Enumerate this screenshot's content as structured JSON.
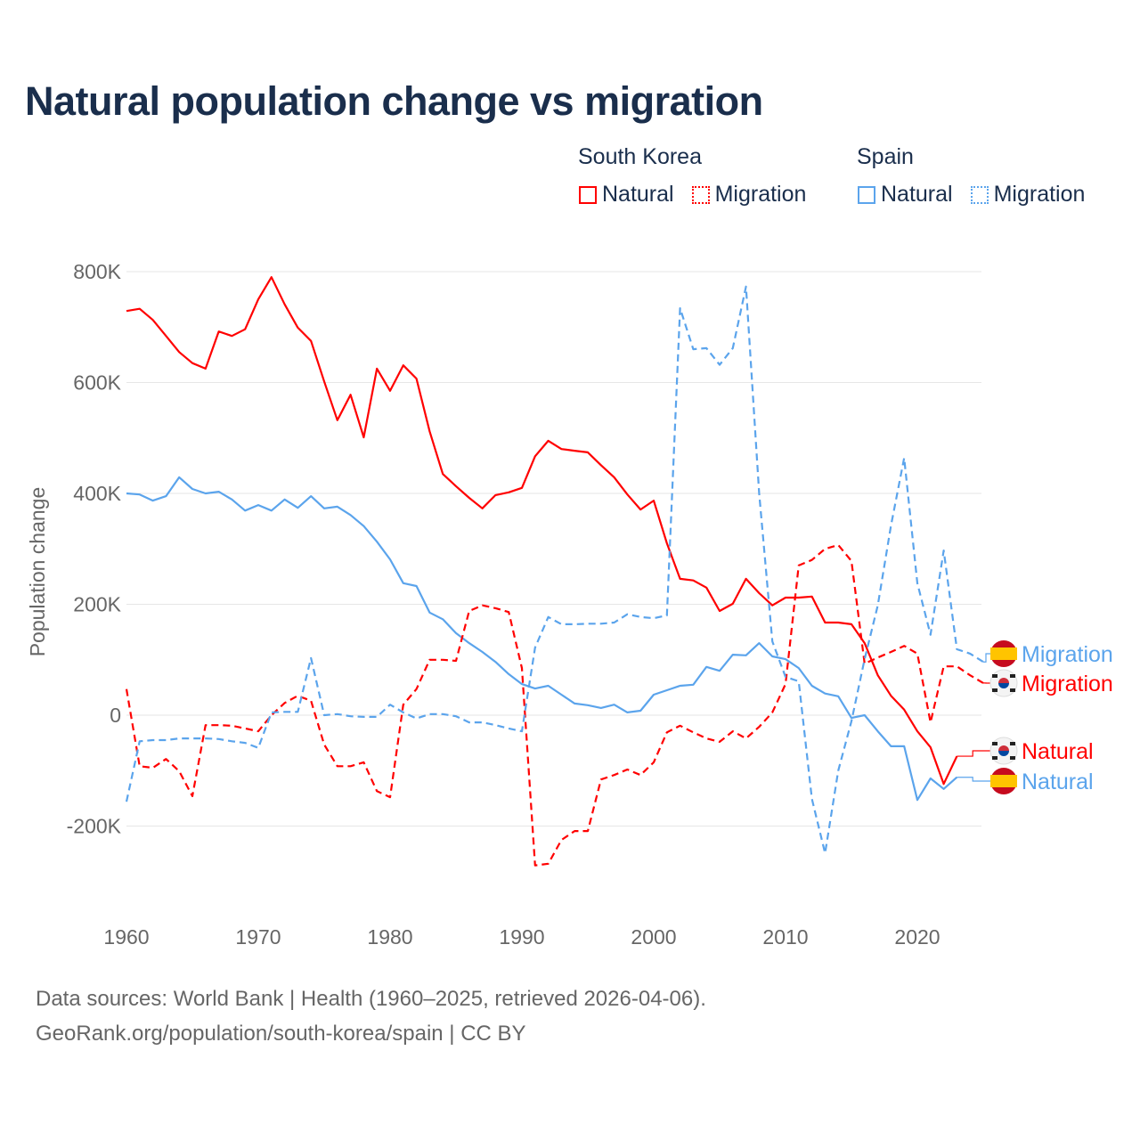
{
  "chart_data": {
    "type": "line",
    "title": "Natural population change vs migration",
    "xlabel": "",
    "ylabel": "Population change",
    "xlim": [
      1960,
      2025
    ],
    "ylim": [
      -300000,
      850000
    ],
    "x_ticks": [
      "1960",
      "1970",
      "1980",
      "1990",
      "2000",
      "2010",
      "2020"
    ],
    "y_ticks": [
      {
        "v": 800000,
        "label": "800K"
      },
      {
        "v": 600000,
        "label": "600K"
      },
      {
        "v": 400000,
        "label": "400K"
      },
      {
        "v": 200000,
        "label": "200K"
      },
      {
        "v": 0,
        "label": "0"
      },
      {
        "v": -200000,
        "label": "-200K"
      }
    ],
    "grid": true,
    "legend_groups": [
      {
        "name": "South Korea",
        "items": [
          {
            "label": "Natural",
            "style": "solid",
            "color": "#ff0000"
          },
          {
            "label": "Migration",
            "style": "dotted",
            "color": "#ff0000"
          }
        ]
      },
      {
        "name": "Spain",
        "items": [
          {
            "label": "Natural",
            "style": "solid",
            "color": "#5ba4ec"
          },
          {
            "label": "Migration",
            "style": "dotted",
            "color": "#5ba4ec"
          }
        ]
      }
    ],
    "series": [
      {
        "name": "South Korea Natural",
        "end_label": "Natural",
        "country": "south-korea",
        "color": "#ff0000",
        "dash": false,
        "start": 1960,
        "values_k": [
          729,
          733,
          713,
          684,
          655,
          635,
          625,
          692,
          684,
          696,
          750,
          790,
          741,
          699,
          675,
          602,
          532,
          578,
          501,
          625,
          585,
          631,
          607,
          512,
          435,
          413,
          392,
          373,
          397,
          402,
          410,
          467,
          495,
          480,
          477,
          474,
          451,
          429,
          398,
          371,
          387,
          310,
          246,
          243,
          230,
          188,
          201,
          246,
          220,
          198,
          212,
          212,
          214,
          167,
          167,
          164,
          130,
          72,
          35,
          10,
          -29,
          -58,
          -124,
          -74
        ]
      },
      {
        "name": "South Korea Migration",
        "end_label": "Migration",
        "country": "south-korea",
        "color": "#ff0000",
        "dash": true,
        "start": 1960,
        "values_k": [
          47,
          -92,
          -95,
          -79,
          -101,
          -146,
          -18,
          -18,
          -19,
          -24,
          -29,
          0,
          22,
          35,
          26,
          -53,
          -92,
          -92,
          -85,
          -137,
          -148,
          19,
          47,
          100,
          100,
          98,
          188,
          198,
          193,
          186,
          85,
          -271,
          -268,
          -225,
          -209,
          -209,
          -116,
          -108,
          -98,
          -108,
          -85,
          -31,
          -19,
          -31,
          -42,
          -48,
          -29,
          -42,
          -21,
          5,
          56,
          270,
          280,
          300,
          307,
          278,
          93,
          104,
          114,
          125,
          111,
          -13,
          88,
          88,
          72,
          58
        ]
      },
      {
        "name": "Spain Natural",
        "end_label": "Natural",
        "country": "spain",
        "color": "#5ba4ec",
        "dash": false,
        "start": 1960,
        "values_k": [
          400,
          398,
          387,
          395,
          429,
          408,
          400,
          403,
          389,
          369,
          379,
          369,
          389,
          374,
          395,
          373,
          376,
          361,
          341,
          313,
          281,
          238,
          233,
          185,
          173,
          148,
          130,
          114,
          96,
          74,
          56,
          48,
          53,
          37,
          21,
          18,
          13,
          19,
          5,
          8,
          37,
          45,
          53,
          55,
          87,
          80,
          109,
          108,
          130,
          106,
          101,
          85,
          53,
          39,
          34,
          -5,
          0,
          -29,
          -56,
          -56,
          -153,
          -114,
          -133,
          -112
        ]
      },
      {
        "name": "Spain Migration",
        "end_label": "Migration",
        "country": "spain",
        "color": "#5ba4ec",
        "dash": true,
        "start": 1960,
        "values_k": [
          -156,
          -47,
          -45,
          -45,
          -42,
          -42,
          -42,
          -43,
          -47,
          -50,
          -59,
          5,
          6,
          6,
          103,
          0,
          2,
          -2,
          -3,
          -3,
          19,
          5,
          -6,
          2,
          2,
          -2,
          -13,
          -13,
          -18,
          -24,
          -29,
          122,
          177,
          164,
          164,
          165,
          165,
          167,
          182,
          177,
          175,
          180,
          734,
          660,
          662,
          632,
          662,
          773,
          400,
          133,
          69,
          61,
          -151,
          -249,
          -100,
          -11,
          101,
          198,
          342,
          464,
          238,
          145,
          297,
          119,
          111,
          96
        ]
      }
    ]
  },
  "sources": {
    "line1": "Data sources: World Bank | Health (1960–2025, retrieved 2026-04-06).",
    "line2": "GeoRank.org/population/south-korea/spain | CC BY"
  }
}
